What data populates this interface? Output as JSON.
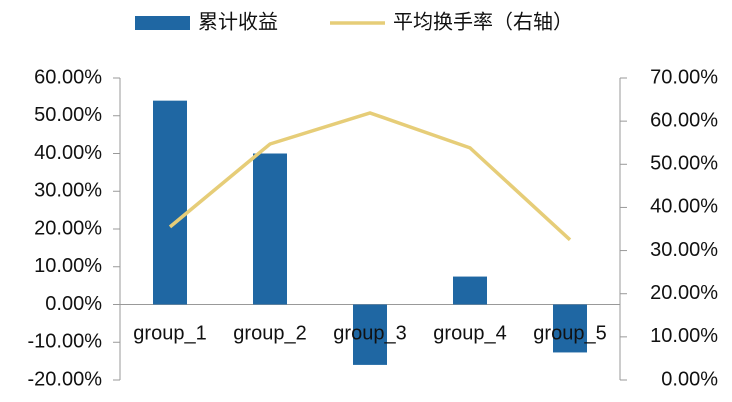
{
  "chart_data": {
    "type": "bar",
    "categories": [
      "group_1",
      "group_2",
      "group_3",
      "group_4",
      "group_5"
    ],
    "series": [
      {
        "name": "累计收益",
        "type": "bar",
        "color": "#1f67a3",
        "values": [
          54,
          40,
          -16,
          7.4,
          -12.7
        ]
      },
      {
        "name": "平均换手率（右轴）",
        "type": "line",
        "axis": "y2",
        "color": "#e6cd78",
        "values": [
          35.5,
          54.7,
          61.9,
          53.8,
          32.5
        ]
      }
    ],
    "ylim": [
      -20,
      60
    ],
    "yticks": [
      {
        "value": -20,
        "label": "-20.00%"
      },
      {
        "value": -10,
        "label": "-10.00%"
      },
      {
        "value": 0,
        "label": "0.00%"
      },
      {
        "value": 10,
        "label": "10.00%"
      },
      {
        "value": 20,
        "label": "20.00%"
      },
      {
        "value": 30,
        "label": "30.00%"
      },
      {
        "value": 40,
        "label": "40.00%"
      },
      {
        "value": 50,
        "label": "50.00%"
      },
      {
        "value": 60,
        "label": "60.00%"
      }
    ],
    "y2lim": [
      0,
      70
    ],
    "y2ticks": [
      {
        "value": 0,
        "label": "0.00%"
      },
      {
        "value": 10,
        "label": "10.00%"
      },
      {
        "value": 20,
        "label": "20.00%"
      },
      {
        "value": 30,
        "label": "30.00%"
      },
      {
        "value": 40,
        "label": "40.00%"
      },
      {
        "value": 50,
        "label": "50.00%"
      },
      {
        "value": 60,
        "label": "60.00%"
      },
      {
        "value": 70,
        "label": "70.00%"
      }
    ],
    "grid": false,
    "legend": "top"
  }
}
